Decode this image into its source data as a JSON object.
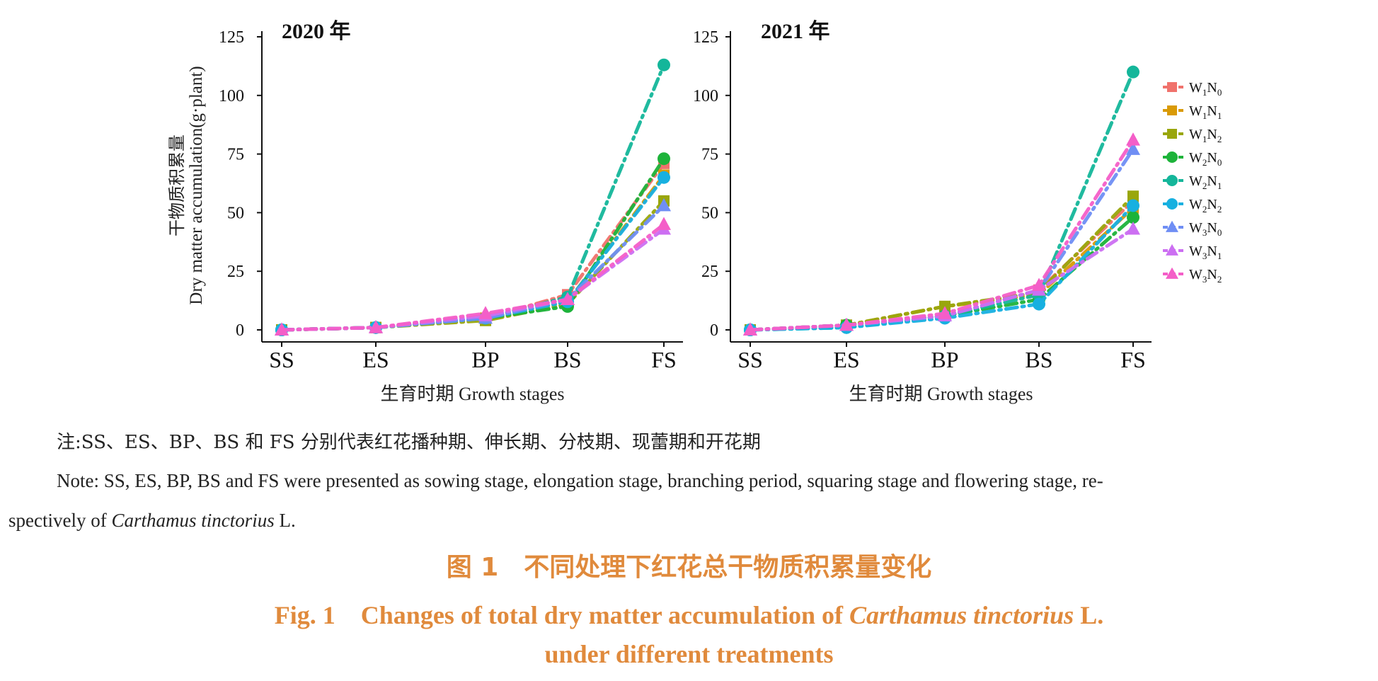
{
  "chart_data": [
    {
      "type": "line",
      "title": "2020 年",
      "xlabel": "生育时期 Growth stages",
      "ylabel_zh": "干物质积累量",
      "ylabel_en": "Dry matter accumulation(g·plant)",
      "categories": [
        "SS",
        "ES",
        "BP",
        "BS",
        "FS"
      ],
      "ylim": [
        0,
        125
      ],
      "yticks": [
        0,
        25,
        50,
        75,
        100,
        125
      ],
      "series": [
        {
          "name": "W1N0",
          "values": [
            0,
            1,
            5,
            15,
            71
          ]
        },
        {
          "name": "W1N1",
          "values": [
            0,
            1,
            5,
            12,
            66
          ]
        },
        {
          "name": "W1N2",
          "values": [
            0,
            1,
            4,
            11,
            55
          ]
        },
        {
          "name": "W2N0",
          "values": [
            0,
            1,
            5,
            10,
            73
          ]
        },
        {
          "name": "W2N1",
          "values": [
            0,
            1,
            5,
            14,
            113
          ]
        },
        {
          "name": "W2N2",
          "values": [
            0,
            1,
            5,
            12,
            65
          ]
        },
        {
          "name": "W3N0",
          "values": [
            0,
            1,
            5,
            13,
            53
          ]
        },
        {
          "name": "W3N1",
          "values": [
            0,
            1,
            6,
            13,
            43
          ]
        },
        {
          "name": "W3N2",
          "values": [
            0,
            1,
            7,
            13,
            45
          ]
        }
      ]
    },
    {
      "type": "line",
      "title": "2021 年",
      "xlabel": "生育时期 Growth stages",
      "categories": [
        "SS",
        "ES",
        "BP",
        "BS",
        "FS"
      ],
      "ylim": [
        0,
        125
      ],
      "yticks": [
        0,
        25,
        50,
        75,
        100,
        125
      ],
      "series": [
        {
          "name": "W1N0",
          "values": [
            0,
            2,
            6,
            17,
            55
          ]
        },
        {
          "name": "W1N1",
          "values": [
            0,
            2,
            10,
            15,
            52
          ]
        },
        {
          "name": "W1N2",
          "values": [
            0,
            2,
            10,
            16,
            57
          ]
        },
        {
          "name": "W2N0",
          "values": [
            0,
            2,
            6,
            13,
            48
          ]
        },
        {
          "name": "W2N1",
          "values": [
            0,
            1,
            6,
            15,
            110
          ]
        },
        {
          "name": "W2N2",
          "values": [
            0,
            1,
            5,
            11,
            53
          ]
        },
        {
          "name": "W3N0",
          "values": [
            0,
            2,
            6,
            17,
            77
          ]
        },
        {
          "name": "W3N1",
          "values": [
            0,
            2,
            6,
            17,
            43
          ]
        },
        {
          "name": "W3N2",
          "values": [
            0,
            2,
            7,
            19,
            81
          ]
        }
      ]
    }
  ],
  "legend": {
    "placement": "right",
    "items": [
      {
        "w": "1",
        "n": "0",
        "color": "#f0726c",
        "marker": "square"
      },
      {
        "w": "1",
        "n": "1",
        "color": "#d99a06",
        "marker": "square"
      },
      {
        "w": "1",
        "n": "2",
        "color": "#99a60c",
        "marker": "square"
      },
      {
        "w": "2",
        "n": "0",
        "color": "#1db33a",
        "marker": "circle"
      },
      {
        "w": "2",
        "n": "1",
        "color": "#14b69a",
        "marker": "circle"
      },
      {
        "w": "2",
        "n": "2",
        "color": "#17b0e0",
        "marker": "circle"
      },
      {
        "w": "3",
        "n": "0",
        "color": "#6f8ef4",
        "marker": "triangle"
      },
      {
        "w": "3",
        "n": "1",
        "color": "#cc6ff2",
        "marker": "triangle"
      },
      {
        "w": "3",
        "n": "2",
        "color": "#f45ec8",
        "marker": "triangle"
      }
    ]
  },
  "notes": {
    "zh": "注:SS、ES、BP、BS 和 FS 分别代表红花播种期、伸长期、分枝期、现蕾期和开花期",
    "en_prefix": "Note: SS, ES, BP, BS and FS were presented as sowing stage, elongation stage, branching period, squaring stage and flowering stage, re-",
    "en_line2_a": "spectively of ",
    "en_line2_species": "Carthamus tinctorius",
    "en_line2_b": " L."
  },
  "caption": {
    "zh": "图 1　不同处理下红花总干物质积累量变化",
    "en_a": "Fig. 1　Changes of total dry matter accumulation of ",
    "en_species": "Carthamus tinctorius",
    "en_b": " L.",
    "en_line2": "under different treatments"
  }
}
